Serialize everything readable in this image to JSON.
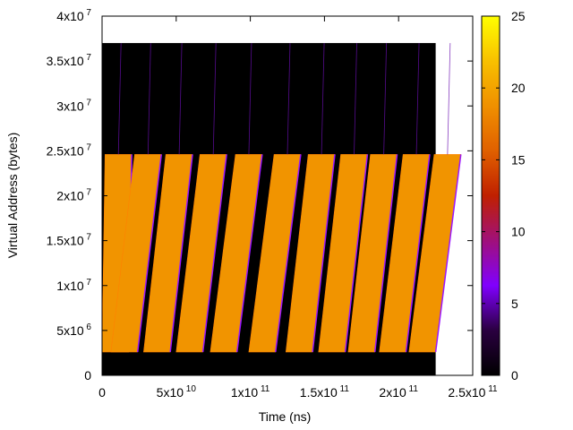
{
  "chart_data": {
    "type": "heatmap",
    "title": "",
    "xlabel": "Time (ns)",
    "ylabel": "Virtual Address (bytes)",
    "xlim": [
      0,
      250000000000
    ],
    "ylim": [
      0,
      40000000
    ],
    "x_ticks": [
      {
        "value": 0,
        "base": "0",
        "exp": ""
      },
      {
        "value": 50000000000,
        "base": "5x10",
        "exp": "10"
      },
      {
        "value": 100000000000,
        "base": "1x10",
        "exp": "11"
      },
      {
        "value": 150000000000,
        "base": "1.5x10",
        "exp": "11"
      },
      {
        "value": 200000000000,
        "base": "2x10",
        "exp": "11"
      },
      {
        "value": 250000000000,
        "base": "2.5x10",
        "exp": "11"
      }
    ],
    "y_ticks": [
      {
        "value": 0,
        "base": "0",
        "exp": ""
      },
      {
        "value": 5000000,
        "base": "5x10",
        "exp": "6"
      },
      {
        "value": 10000000,
        "base": "1x10",
        "exp": "7"
      },
      {
        "value": 15000000,
        "base": "1.5x10",
        "exp": "7"
      },
      {
        "value": 20000000,
        "base": "2x10",
        "exp": "7"
      },
      {
        "value": 25000000,
        "base": "2.5x10",
        "exp": "7"
      },
      {
        "value": 30000000,
        "base": "3x10",
        "exp": "7"
      },
      {
        "value": 35000000,
        "base": "3.5x10",
        "exp": "7"
      },
      {
        "value": 40000000,
        "base": "4x10",
        "exp": "7"
      }
    ],
    "data_extent": {
      "x": [
        0,
        225000000000
      ],
      "y": [
        0,
        37000000
      ]
    },
    "background_value": 0,
    "band_value": 19,
    "band_y_range": [
      2600000,
      24600000
    ],
    "sweeps": [
      {
        "x_start": 0,
        "x_end": 2000000000
      },
      {
        "x_start": 6000000000,
        "x_end": 22000000000
      },
      {
        "x_start": 28000000000,
        "x_end": 43000000000
      },
      {
        "x_start": 50000000000,
        "x_end": 66000000000
      },
      {
        "x_start": 73000000000,
        "x_end": 90000000000
      },
      {
        "x_start": 99000000000,
        "x_end": 116000000000
      },
      {
        "x_start": 124000000000,
        "x_end": 139000000000
      },
      {
        "x_start": 146000000000,
        "x_end": 161000000000
      },
      {
        "x_start": 166000000000,
        "x_end": 181000000000
      },
      {
        "x_start": 187000000000,
        "x_end": 203000000000
      },
      {
        "x_start": 207000000000,
        "x_end": 224000000000
      }
    ],
    "colorbar": {
      "range": [
        0,
        25
      ],
      "ticks": [
        0,
        5,
        10,
        15,
        20,
        25
      ],
      "palette": [
        "#000000",
        "#2a0040",
        "#8000ff",
        "#a0107a",
        "#c02000",
        "#e06000",
        "#f09000",
        "#f8c000",
        "#ffff00"
      ]
    }
  }
}
